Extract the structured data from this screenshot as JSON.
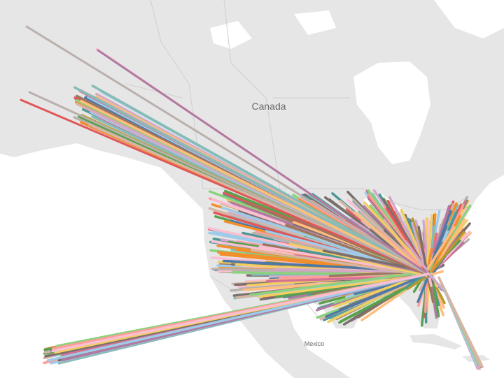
{
  "map": {
    "labels": {
      "canada": "Canada",
      "mexico": "Mexico"
    }
  }
}
